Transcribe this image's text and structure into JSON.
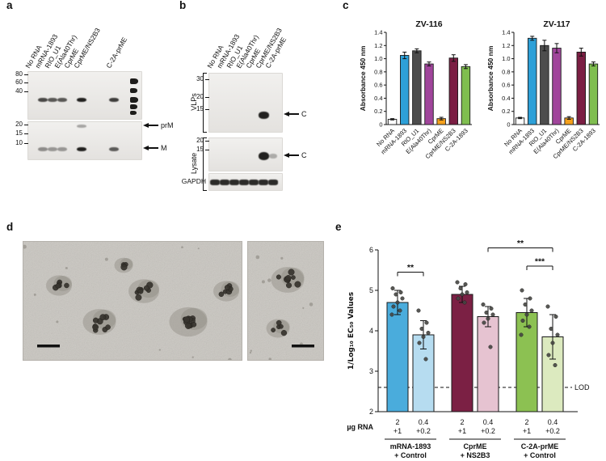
{
  "panels": {
    "a": {
      "label": "a",
      "lanes": [
        "No RNA",
        "mRNA-1893",
        "RIO_U1",
        "E(Ala40Thr)",
        "CprME",
        "CprME/NS2B3",
        "C-2A-prME"
      ],
      "mw_top": [
        "80",
        "60",
        "40"
      ],
      "mw_bottom": [
        "20",
        "15",
        "10"
      ],
      "arrow_prm": "prM",
      "arrow_m": "M",
      "bands_top": [
        {
          "lane": 1,
          "o": 0.8
        },
        {
          "lane": 2,
          "o": 0.72
        },
        {
          "lane": 3,
          "o": 0.72
        },
        {
          "lane": 5,
          "o": 1
        },
        {
          "lane": 6,
          "o": 0.85
        }
      ],
      "bands_bottom": [
        {
          "lane": 1,
          "o": 0.45
        },
        {
          "lane": 2,
          "o": 0.4
        },
        {
          "lane": 3,
          "o": 0.4
        },
        {
          "lane": 5,
          "o": 1
        },
        {
          "lane": 6,
          "o": 0.7
        }
      ]
    },
    "b": {
      "label": "b",
      "lanes": [
        "No RNA",
        "mRNA-1893",
        "RIO_U1",
        "E(Ala40Thr)",
        "CprME",
        "CprME/NS2B3",
        "C-2A-prME"
      ],
      "section_vlps": "VLPs",
      "section_lysate": "Lysate",
      "gapdh": "GAPDH",
      "mw_vlps": [
        "30",
        "20",
        "15"
      ],
      "mw_lysate": [
        "20",
        "15"
      ],
      "arrow_c": "C",
      "bands_vlps": [
        {
          "lane": 5,
          "o": 1,
          "w": 13,
          "h": 9
        }
      ],
      "bands_lysate": [
        {
          "lane": 5,
          "o": 1,
          "w": 13,
          "h": 10
        },
        {
          "lane": 6,
          "o": 0.3,
          "w": 10,
          "h": 6
        }
      ]
    },
    "c": {
      "label": "c"
    },
    "d": {
      "label": "d"
    },
    "e": {
      "label": "e"
    }
  },
  "chart_data": [
    {
      "type": "bar",
      "title": "ZV-116",
      "ylabel": "Absorbance 450 nm",
      "ylim": [
        0,
        1.4
      ],
      "yticks": [
        "0",
        "0.2",
        "0.4",
        "0.6",
        "0.8",
        "1.0",
        "1.2",
        "1.4"
      ],
      "categories": [
        "No RNA",
        "mRNA-1893",
        "RIO_U1",
        "E(Ala40Thr)",
        "CprME",
        "CprME/NS2B3",
        "C-2A-1893"
      ],
      "values": [
        0.08,
        1.05,
        1.12,
        0.92,
        0.09,
        1.01,
        0.88
      ],
      "errors": [
        0.01,
        0.05,
        0.03,
        0.03,
        0.02,
        0.05,
        0.03
      ],
      "colors": [
        "#ffffff",
        "#2da0d8",
        "#4d4d4d",
        "#a0459b",
        "#f5a01b",
        "#7b1e43",
        "#7fbe4f"
      ],
      "legend": "none",
      "grid": false
    },
    {
      "type": "bar",
      "title": "ZV-117",
      "ylabel": "Absorbance 450 nm",
      "ylim": [
        0,
        1.4
      ],
      "yticks": [
        "0",
        "0.2",
        "0.4",
        "0.6",
        "0.8",
        "1.0",
        "1.2",
        "1.4"
      ],
      "categories": [
        "No RNA",
        "mRNA-1893",
        "RIO_U1",
        "E(Ala40Thr)",
        "CprME",
        "CprME/NS2B3",
        "C-2A-1893"
      ],
      "values": [
        0.1,
        1.31,
        1.2,
        1.16,
        0.1,
        1.1,
        0.92
      ],
      "errors": [
        0.01,
        0.03,
        0.08,
        0.07,
        0.02,
        0.06,
        0.03
      ],
      "colors": [
        "#ffffff",
        "#2da0d8",
        "#4d4d4d",
        "#a0459b",
        "#f5a01b",
        "#7b1e43",
        "#7fbe4f"
      ],
      "legend": "none",
      "grid": false
    },
    {
      "type": "bar",
      "title": "",
      "ylabel": "1/Log₁₀ EC₅₀ Values",
      "xlabel": "µg RNA",
      "ylim": [
        2,
        6
      ],
      "yticks": [
        "2",
        "3",
        "4",
        "5",
        "6"
      ],
      "lod": {
        "value": 2.6,
        "label": "LOD"
      },
      "groups": [
        {
          "label": [
            "mRNA-1893",
            "+ Control"
          ],
          "bars": [
            {
              "dose": [
                "2",
                "+1"
              ],
              "value": 4.7,
              "err": 0.3,
              "color": "#4aacdc",
              "points": [
                5.05,
                4.95,
                4.9,
                4.8,
                4.7,
                4.6,
                4.5,
                4.4
              ]
            },
            {
              "dose": [
                "0.4",
                "+0.2"
              ],
              "value": 3.9,
              "err": 0.35,
              "color": "#b6dcf0",
              "points": [
                4.5,
                4.2,
                4.05,
                3.95,
                3.85,
                3.7,
                3.3
              ]
            }
          ]
        },
        {
          "label": [
            "CprME",
            "+ NS2B3"
          ],
          "bars": [
            {
              "dose": [
                "2",
                "+1"
              ],
              "value": 4.9,
              "err": 0.2,
              "color": "#7b2044",
              "points": [
                5.2,
                5.15,
                5.05,
                4.95,
                4.9,
                4.8,
                4.7
              ]
            },
            {
              "dose": [
                "0.4",
                "+0.2"
              ],
              "value": 4.35,
              "err": 0.25,
              "color": "#e6c3d1",
              "points": [
                4.65,
                4.55,
                4.45,
                4.4,
                4.3,
                4.2,
                3.6
              ]
            }
          ]
        },
        {
          "label": [
            "C-2A-prME",
            "+ Control"
          ],
          "bars": [
            {
              "dose": [
                "2",
                "+1"
              ],
              "value": 4.45,
              "err": 0.35,
              "color": "#8cc152",
              "points": [
                5.0,
                4.8,
                4.65,
                4.5,
                4.4,
                4.25,
                4.1,
                3.9
              ]
            },
            {
              "dose": [
                "0.4",
                "+0.2"
              ],
              "value": 3.85,
              "err": 0.55,
              "color": "#dceabf",
              "points": [
                4.6,
                4.35,
                4.05,
                3.9,
                3.7,
                3.4,
                3.15
              ]
            }
          ]
        }
      ],
      "significance": [
        {
          "label": "**",
          "from": [
            0,
            0
          ],
          "to": [
            0,
            1
          ],
          "level": 5.45
        },
        {
          "label": "**",
          "from": [
            1,
            1
          ],
          "to": [
            2,
            1
          ],
          "level": 6.05
        },
        {
          "label": "***",
          "from": [
            2,
            0
          ],
          "to": [
            2,
            1
          ],
          "level": 5.6
        }
      ]
    }
  ]
}
